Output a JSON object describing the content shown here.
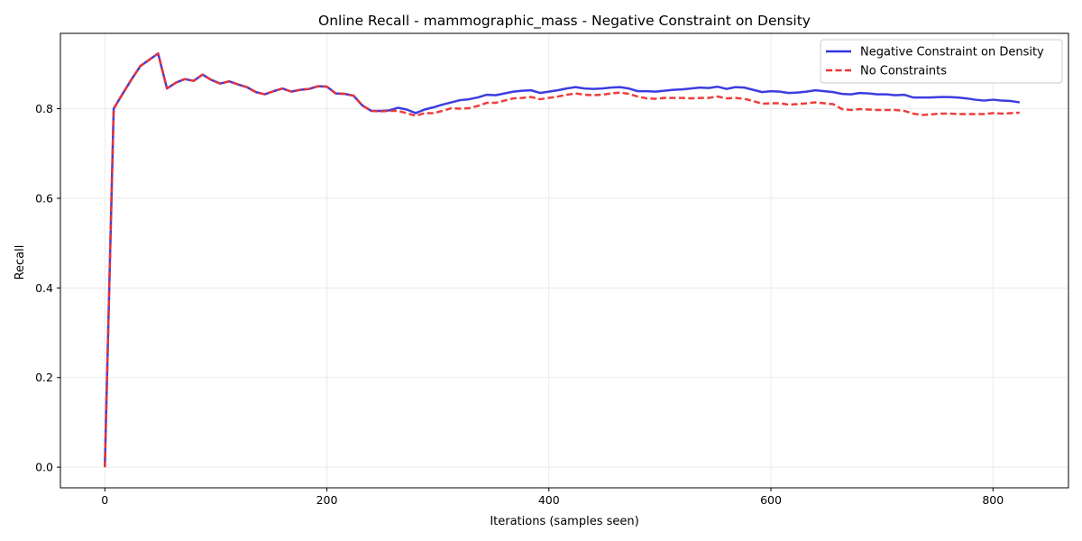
{
  "chart_data": {
    "type": "line",
    "title": "Online Recall - mammographic_mass - Negative Constraint on Density",
    "xlabel": "Iterations (samples seen)",
    "ylabel": "Recall",
    "xlim": [
      -40,
      868
    ],
    "ylim": [
      -0.046,
      0.968
    ],
    "xticks": [
      0,
      200,
      400,
      600,
      800
    ],
    "yticks": [
      0.0,
      0.2,
      0.4,
      0.6,
      0.8
    ],
    "xtick_labels": [
      "0",
      "200",
      "400",
      "600",
      "800"
    ],
    "ytick_labels": [
      "0.0",
      "0.2",
      "0.4",
      "0.6",
      "0.8"
    ],
    "grid": true,
    "legend_position": "top-right",
    "series": [
      {
        "name": "Negative Constraint on Density",
        "color": "#3333dd",
        "style": "solid",
        "x": [
          0,
          8,
          16,
          24,
          32,
          40,
          48,
          56,
          64,
          72,
          80,
          88,
          96,
          104,
          112,
          120,
          128,
          136,
          144,
          152,
          160,
          168,
          176,
          184,
          192,
          200,
          208,
          216,
          224,
          232,
          240,
          248,
          256,
          264,
          272,
          280,
          288,
          296,
          304,
          312,
          320,
          328,
          336,
          344,
          352,
          360,
          368,
          376,
          384,
          392,
          400,
          408,
          416,
          424,
          432,
          440,
          448,
          456,
          464,
          472,
          480,
          488,
          496,
          504,
          512,
          520,
          528,
          536,
          544,
          552,
          560,
          568,
          576,
          584,
          592,
          600,
          608,
          616,
          624,
          632,
          640,
          648,
          656,
          664,
          672,
          680,
          688,
          696,
          704,
          712,
          720,
          728,
          736,
          744,
          752,
          760,
          768,
          776,
          784,
          792,
          800,
          808,
          816,
          824
        ],
        "values": [
          0.0,
          0.8,
          0.833,
          0.865,
          0.895,
          0.909,
          0.923,
          0.845,
          0.858,
          0.866,
          0.862,
          0.876,
          0.864,
          0.856,
          0.861,
          0.854,
          0.848,
          0.837,
          0.832,
          0.839,
          0.845,
          0.838,
          0.842,
          0.844,
          0.85,
          0.849,
          0.834,
          0.833,
          0.829,
          0.807,
          0.795,
          0.795,
          0.796,
          0.802,
          0.798,
          0.79,
          0.798,
          0.803,
          0.809,
          0.814,
          0.819,
          0.821,
          0.825,
          0.831,
          0.83,
          0.834,
          0.838,
          0.84,
          0.841,
          0.835,
          0.838,
          0.841,
          0.845,
          0.848,
          0.845,
          0.844,
          0.845,
          0.847,
          0.848,
          0.845,
          0.839,
          0.839,
          0.838,
          0.84,
          0.842,
          0.843,
          0.845,
          0.847,
          0.846,
          0.849,
          0.844,
          0.848,
          0.847,
          0.842,
          0.837,
          0.839,
          0.838,
          0.835,
          0.836,
          0.838,
          0.841,
          0.839,
          0.837,
          0.833,
          0.832,
          0.835,
          0.834,
          0.832,
          0.832,
          0.83,
          0.831,
          0.825,
          0.825,
          0.825,
          0.826,
          0.826,
          0.825,
          0.823,
          0.82,
          0.818,
          0.82,
          0.818,
          0.817,
          0.814
        ]
      },
      {
        "name": "No Constraints",
        "color": "#ee3333",
        "style": "dashed",
        "x": [
          0,
          8,
          16,
          24,
          32,
          40,
          48,
          56,
          64,
          72,
          80,
          88,
          96,
          104,
          112,
          120,
          128,
          136,
          144,
          152,
          160,
          168,
          176,
          184,
          192,
          200,
          208,
          216,
          224,
          232,
          240,
          248,
          256,
          264,
          272,
          280,
          288,
          296,
          304,
          312,
          320,
          328,
          336,
          344,
          352,
          360,
          368,
          376,
          384,
          392,
          400,
          408,
          416,
          424,
          432,
          440,
          448,
          456,
          464,
          472,
          480,
          488,
          496,
          504,
          512,
          520,
          528,
          536,
          544,
          552,
          560,
          568,
          576,
          584,
          592,
          600,
          608,
          616,
          624,
          632,
          640,
          648,
          656,
          664,
          672,
          680,
          688,
          696,
          704,
          712,
          720,
          728,
          736,
          744,
          752,
          760,
          768,
          776,
          784,
          792,
          800,
          808,
          816,
          824
        ],
        "values": [
          0.0,
          0.8,
          0.833,
          0.865,
          0.895,
          0.909,
          0.923,
          0.845,
          0.858,
          0.866,
          0.862,
          0.876,
          0.864,
          0.856,
          0.861,
          0.854,
          0.848,
          0.837,
          0.832,
          0.839,
          0.845,
          0.838,
          0.842,
          0.844,
          0.85,
          0.849,
          0.834,
          0.833,
          0.829,
          0.807,
          0.795,
          0.794,
          0.795,
          0.795,
          0.79,
          0.784,
          0.79,
          0.79,
          0.795,
          0.801,
          0.8,
          0.801,
          0.806,
          0.813,
          0.813,
          0.818,
          0.823,
          0.824,
          0.826,
          0.821,
          0.824,
          0.827,
          0.831,
          0.834,
          0.831,
          0.83,
          0.831,
          0.834,
          0.836,
          0.833,
          0.827,
          0.823,
          0.822,
          0.824,
          0.824,
          0.824,
          0.823,
          0.824,
          0.824,
          0.827,
          0.823,
          0.824,
          0.822,
          0.817,
          0.811,
          0.812,
          0.812,
          0.809,
          0.81,
          0.812,
          0.814,
          0.812,
          0.81,
          0.799,
          0.797,
          0.799,
          0.798,
          0.797,
          0.797,
          0.797,
          0.795,
          0.789,
          0.786,
          0.787,
          0.789,
          0.789,
          0.788,
          0.788,
          0.788,
          0.788,
          0.79,
          0.789,
          0.79,
          0.791
        ]
      }
    ]
  }
}
